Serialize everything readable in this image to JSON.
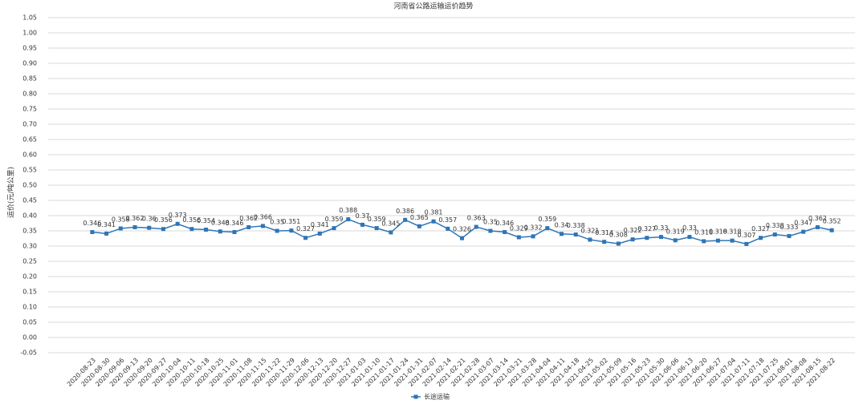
{
  "chart_data": {
    "type": "line",
    "title": "河南省公路运输运价趋势",
    "y_label": "运价(元/吨公里)",
    "categories": [
      "2020-08-23",
      "2020-08-30",
      "2020-09-06",
      "2020-09-13",
      "2020-09-20",
      "2020-09-27",
      "2020-10-04",
      "2020-10-11",
      "2020-10-18",
      "2020-10-25",
      "2020-11-01",
      "2020-11-08",
      "2020-11-15",
      "2020-11-22",
      "2020-11-29",
      "2020-12-06",
      "2020-12-13",
      "2020-12-20",
      "2020-12-27",
      "2021-01-03",
      "2021-01-10",
      "2021-01-17",
      "2021-01-24",
      "2021-01-31",
      "2021-02-07",
      "2021-02-14",
      "2021-02-21",
      "2021-02-28",
      "2021-03-07",
      "2021-03-14",
      "2021-03-21",
      "2021-03-28",
      "2021-04-04",
      "2021-04-11",
      "2021-04-18",
      "2021-04-25",
      "2021-05-02",
      "2021-05-09",
      "2021-05-16",
      "2021-05-23",
      "2021-05-30",
      "2021-06-06",
      "2021-06-13",
      "2021-06-20",
      "2021-06-27",
      "2021-07-04",
      "2021-07-11",
      "2021-07-18",
      "2021-07-25",
      "2021-08-01",
      "2021-08-08",
      "2021-08-15",
      "2021-08-22"
    ],
    "series": [
      {
        "name": "长途运输",
        "color": "#2e75b6",
        "values": [
          0.346,
          0.341,
          0.358,
          0.362,
          0.36,
          0.356,
          0.373,
          0.356,
          0.354,
          0.348,
          0.346,
          0.362,
          0.366,
          0.35,
          0.351,
          0.327,
          0.341,
          0.359,
          0.388,
          0.37,
          0.359,
          0.345,
          0.386,
          0.365,
          0.381,
          0.357,
          0.326,
          0.363,
          0.35,
          0.346,
          0.329,
          0.332,
          0.359,
          0.34,
          0.338,
          0.321,
          0.314,
          0.308,
          0.322,
          0.327,
          0.33,
          0.319,
          0.33,
          0.316,
          0.318,
          0.318,
          0.307,
          0.327,
          0.338,
          0.333,
          0.347,
          0.362,
          0.352
        ]
      }
    ],
    "ylim": [
      -0.05,
      1.05
    ],
    "yticks": [
      {
        "value": -0.05,
        "label": "-0.05"
      },
      {
        "value": 0,
        "label": "0.00"
      },
      {
        "value": 0.05,
        "label": "0.05"
      },
      {
        "value": 0.1,
        "label": "0.10"
      },
      {
        "value": 0.15,
        "label": "0.15"
      },
      {
        "value": 0.2,
        "label": "0.20"
      },
      {
        "value": 0.25,
        "label": "0.25"
      },
      {
        "value": 0.3,
        "label": "0.30"
      },
      {
        "value": 0.35,
        "label": "0.35"
      },
      {
        "value": 0.4,
        "label": "0.40"
      },
      {
        "value": 0.45,
        "label": "0.45"
      },
      {
        "value": 0.5,
        "label": "0.50"
      },
      {
        "value": 0.55,
        "label": "0.55"
      },
      {
        "value": 0.6,
        "label": "0.60"
      },
      {
        "value": 0.65,
        "label": "0.65"
      },
      {
        "value": 0.7,
        "label": "0.70"
      },
      {
        "value": 0.75,
        "label": "0.75"
      },
      {
        "value": 0.8,
        "label": "0.80"
      },
      {
        "value": 0.85,
        "label": "0.85"
      },
      {
        "value": 0.9,
        "label": "0.90"
      },
      {
        "value": 0.95,
        "label": "0.95"
      },
      {
        "value": 1,
        "label": "1.00"
      },
      {
        "value": 1.05,
        "label": "1.05"
      }
    ],
    "grid": true,
    "legend": "bottom"
  }
}
